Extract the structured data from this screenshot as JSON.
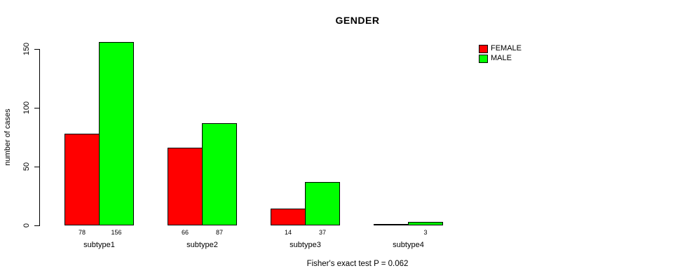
{
  "chart_data": {
    "type": "bar",
    "title": "GENDER",
    "xlabel": "",
    "ylabel": "number of cases",
    "categories": [
      "subtype1",
      "subtype2",
      "subtype3",
      "subtype4"
    ],
    "series": [
      {
        "name": "FEMALE",
        "color": "#FF0000",
        "values": [
          78,
          66,
          14,
          0
        ],
        "bar_labels": [
          "78",
          "66",
          "14",
          ""
        ]
      },
      {
        "name": "MALE",
        "color": "#00FF00",
        "values": [
          156,
          87,
          37,
          3
        ],
        "bar_labels": [
          "156",
          "87",
          "37",
          "3"
        ]
      }
    ],
    "yticks": [
      0,
      50,
      100,
      150
    ],
    "ylim": [
      0,
      156
    ],
    "grid": false,
    "legend_position": "right",
    "annotation": "Fisher's exact test P = 0.062"
  }
}
